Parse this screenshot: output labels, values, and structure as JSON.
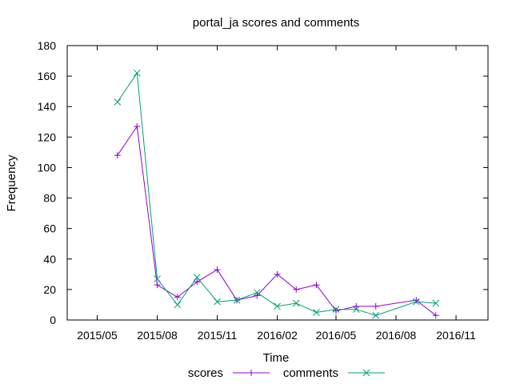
{
  "chart_data": {
    "type": "line",
    "title": "portal_ja scores and comments",
    "xlabel": "Time",
    "ylabel": "Frequency",
    "ylim": [
      0,
      180
    ],
    "yticks": [
      0,
      20,
      40,
      60,
      80,
      100,
      120,
      140,
      160,
      180
    ],
    "ytick_labels": [
      "0",
      "20",
      "40",
      "60",
      "80",
      "100",
      "120",
      "140",
      "160",
      "180"
    ],
    "xlim": [
      "2015-03-16",
      "2016-12-20"
    ],
    "xticks": [
      "2015-05-01",
      "2015-08-01",
      "2015-11-01",
      "2016-02-01",
      "2016-05-01",
      "2016-08-01",
      "2016-11-01"
    ],
    "xtick_labels": [
      "2015/05",
      "2015/08",
      "2015/11",
      "2016/02",
      "2016/05",
      "2016/08",
      "2016/11"
    ],
    "grid": false,
    "legend_position": "bottom",
    "series": [
      {
        "name": "scores",
        "color": "#9400d3",
        "marker": "plus",
        "x": [
          "2015-06-01",
          "2015-07-01",
          "2015-08-01",
          "2015-09-01",
          "2015-10-01",
          "2015-11-01",
          "2015-12-01",
          "2016-01-01",
          "2016-02-01",
          "2016-03-01",
          "2016-04-01",
          "2016-05-01",
          "2016-06-01",
          "2016-07-01",
          "2016-09-01",
          "2016-10-01"
        ],
        "values": [
          108,
          127,
          23,
          15,
          25,
          33,
          13,
          16,
          30,
          20,
          23,
          6,
          9,
          9,
          13,
          3
        ]
      },
      {
        "name": "comments",
        "color": "#009e73",
        "marker": "cross",
        "x": [
          "2015-06-01",
          "2015-07-01",
          "2015-08-01",
          "2015-09-01",
          "2015-10-01",
          "2015-11-01",
          "2015-12-01",
          "2016-01-01",
          "2016-02-01",
          "2016-03-01",
          "2016-04-01",
          "2016-05-01",
          "2016-06-01",
          "2016-07-01",
          "2016-09-01",
          "2016-10-01"
        ],
        "values": [
          143,
          162,
          27,
          10,
          28,
          12,
          13,
          18,
          9,
          11,
          5,
          7,
          7,
          3,
          12,
          11
        ]
      }
    ]
  }
}
